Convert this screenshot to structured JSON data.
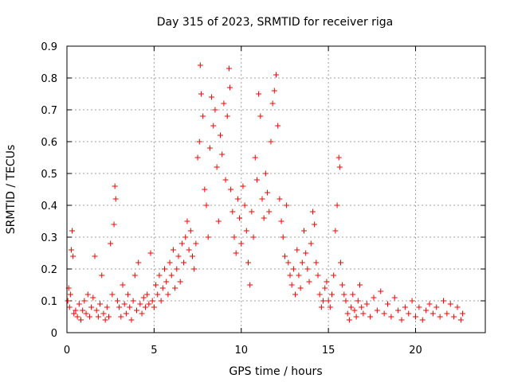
{
  "chart_data": {
    "type": "scatter",
    "title": "Day 315 of 2023, SRMTID for receiver riga",
    "xlabel": "GPS time / hours",
    "ylabel": "SRMTID / TECUs",
    "xlim": [
      0,
      24
    ],
    "ylim": [
      0,
      0.9
    ],
    "x_ticks": [
      0,
      5,
      10,
      15,
      20
    ],
    "x_tick_labels": [
      "0",
      "5",
      "10",
      "15",
      "20"
    ],
    "y_ticks": [
      0,
      0.1,
      0.2,
      0.3,
      0.4,
      0.5,
      0.6,
      0.7,
      0.8,
      0.9
    ],
    "y_tick_labels": [
      "0",
      "0.1",
      "0.2",
      "0.3",
      "0.4",
      "0.5",
      "0.6",
      "0.7",
      "0.8",
      "0.9"
    ],
    "grid": true,
    "marker": "plus",
    "marker_color": "#ff0000",
    "series": [
      {
        "name": "SRMTID",
        "points": [
          [
            0.05,
            0.1
          ],
          [
            0.1,
            0.14
          ],
          [
            0.15,
            0.08
          ],
          [
            0.2,
            0.12
          ],
          [
            0.25,
            0.26
          ],
          [
            0.3,
            0.32
          ],
          [
            0.35,
            0.24
          ],
          [
            0.4,
            0.06
          ],
          [
            0.5,
            0.07
          ],
          [
            0.6,
            0.05
          ],
          [
            0.7,
            0.09
          ],
          [
            0.8,
            0.04
          ],
          [
            0.9,
            0.07
          ],
          [
            1.0,
            0.1
          ],
          [
            1.1,
            0.06
          ],
          [
            1.2,
            0.12
          ],
          [
            1.3,
            0.05
          ],
          [
            1.4,
            0.08
          ],
          [
            1.5,
            0.11
          ],
          [
            1.6,
            0.24
          ],
          [
            1.7,
            0.07
          ],
          [
            1.8,
            0.05
          ],
          [
            1.9,
            0.09
          ],
          [
            2.0,
            0.18
          ],
          [
            2.1,
            0.06
          ],
          [
            2.2,
            0.04
          ],
          [
            2.3,
            0.08
          ],
          [
            2.4,
            0.05
          ],
          [
            2.5,
            0.28
          ],
          [
            2.6,
            0.12
          ],
          [
            2.7,
            0.34
          ],
          [
            2.75,
            0.46
          ],
          [
            2.8,
            0.42
          ],
          [
            2.9,
            0.1
          ],
          [
            3.0,
            0.08
          ],
          [
            3.1,
            0.05
          ],
          [
            3.2,
            0.15
          ],
          [
            3.3,
            0.09
          ],
          [
            3.4,
            0.06
          ],
          [
            3.5,
            0.12
          ],
          [
            3.6,
            0.08
          ],
          [
            3.7,
            0.04
          ],
          [
            3.8,
            0.1
          ],
          [
            3.9,
            0.18
          ],
          [
            4.0,
            0.07
          ],
          [
            4.1,
            0.22
          ],
          [
            4.2,
            0.09
          ],
          [
            4.3,
            0.06
          ],
          [
            4.4,
            0.11
          ],
          [
            4.5,
            0.08
          ],
          [
            4.6,
            0.12
          ],
          [
            4.7,
            0.09
          ],
          [
            4.8,
            0.25
          ],
          [
            4.9,
            0.1
          ],
          [
            5.0,
            0.08
          ],
          [
            5.1,
            0.15
          ],
          [
            5.2,
            0.12
          ],
          [
            5.3,
            0.18
          ],
          [
            5.4,
            0.1
          ],
          [
            5.5,
            0.14
          ],
          [
            5.6,
            0.2
          ],
          [
            5.7,
            0.16
          ],
          [
            5.8,
            0.12
          ],
          [
            5.9,
            0.22
          ],
          [
            6.0,
            0.18
          ],
          [
            6.1,
            0.26
          ],
          [
            6.2,
            0.14
          ],
          [
            6.3,
            0.2
          ],
          [
            6.4,
            0.24
          ],
          [
            6.5,
            0.16
          ],
          [
            6.6,
            0.28
          ],
          [
            6.7,
            0.22
          ],
          [
            6.8,
            0.3
          ],
          [
            6.9,
            0.35
          ],
          [
            7.0,
            0.26
          ],
          [
            7.1,
            0.32
          ],
          [
            7.2,
            0.24
          ],
          [
            7.3,
            0.2
          ],
          [
            7.4,
            0.28
          ],
          [
            7.5,
            0.55
          ],
          [
            7.6,
            0.6
          ],
          [
            7.65,
            0.84
          ],
          [
            7.7,
            0.75
          ],
          [
            7.8,
            0.68
          ],
          [
            7.9,
            0.45
          ],
          [
            8.0,
            0.4
          ],
          [
            8.1,
            0.3
          ],
          [
            8.2,
            0.58
          ],
          [
            8.3,
            0.74
          ],
          [
            8.4,
            0.65
          ],
          [
            8.5,
            0.7
          ],
          [
            8.6,
            0.52
          ],
          [
            8.7,
            0.35
          ],
          [
            8.8,
            0.62
          ],
          [
            8.9,
            0.56
          ],
          [
            9.0,
            0.72
          ],
          [
            9.1,
            0.48
          ],
          [
            9.2,
            0.68
          ],
          [
            9.3,
            0.83
          ],
          [
            9.35,
            0.77
          ],
          [
            9.4,
            0.45
          ],
          [
            9.5,
            0.38
          ],
          [
            9.6,
            0.3
          ],
          [
            9.7,
            0.25
          ],
          [
            9.8,
            0.42
          ],
          [
            9.9,
            0.36
          ],
          [
            10.0,
            0.28
          ],
          [
            10.1,
            0.46
          ],
          [
            10.2,
            0.4
          ],
          [
            10.3,
            0.32
          ],
          [
            10.4,
            0.22
          ],
          [
            10.5,
            0.15
          ],
          [
            10.6,
            0.38
          ],
          [
            10.7,
            0.3
          ],
          [
            10.8,
            0.55
          ],
          [
            10.9,
            0.48
          ],
          [
            11.0,
            0.75
          ],
          [
            11.1,
            0.68
          ],
          [
            11.2,
            0.42
          ],
          [
            11.3,
            0.36
          ],
          [
            11.4,
            0.5
          ],
          [
            11.5,
            0.44
          ],
          [
            11.6,
            0.38
          ],
          [
            11.7,
            0.6
          ],
          [
            11.8,
            0.72
          ],
          [
            11.9,
            0.76
          ],
          [
            12.0,
            0.81
          ],
          [
            12.1,
            0.65
          ],
          [
            12.2,
            0.42
          ],
          [
            12.3,
            0.35
          ],
          [
            12.4,
            0.3
          ],
          [
            12.5,
            0.24
          ],
          [
            12.6,
            0.4
          ],
          [
            12.7,
            0.22
          ],
          [
            12.8,
            0.18
          ],
          [
            12.9,
            0.15
          ],
          [
            13.0,
            0.2
          ],
          [
            13.1,
            0.12
          ],
          [
            13.2,
            0.26
          ],
          [
            13.3,
            0.18
          ],
          [
            13.4,
            0.14
          ],
          [
            13.5,
            0.22
          ],
          [
            13.6,
            0.32
          ],
          [
            13.7,
            0.25
          ],
          [
            13.8,
            0.2
          ],
          [
            13.9,
            0.16
          ],
          [
            14.0,
            0.28
          ],
          [
            14.1,
            0.38
          ],
          [
            14.2,
            0.34
          ],
          [
            14.3,
            0.22
          ],
          [
            14.4,
            0.18
          ],
          [
            14.5,
            0.12
          ],
          [
            14.6,
            0.08
          ],
          [
            14.7,
            0.1
          ],
          [
            14.8,
            0.14
          ],
          [
            14.9,
            0.16
          ],
          [
            15.0,
            0.1
          ],
          [
            15.1,
            0.08
          ],
          [
            15.2,
            0.12
          ],
          [
            15.3,
            0.18
          ],
          [
            15.4,
            0.32
          ],
          [
            15.5,
            0.4
          ],
          [
            15.6,
            0.55
          ],
          [
            15.65,
            0.52
          ],
          [
            15.7,
            0.22
          ],
          [
            15.8,
            0.15
          ],
          [
            15.9,
            0.12
          ],
          [
            16.0,
            0.1
          ],
          [
            16.1,
            0.06
          ],
          [
            16.2,
            0.04
          ],
          [
            16.3,
            0.08
          ],
          [
            16.4,
            0.12
          ],
          [
            16.5,
            0.07
          ],
          [
            16.6,
            0.05
          ],
          [
            16.7,
            0.1
          ],
          [
            16.8,
            0.15
          ],
          [
            16.9,
            0.08
          ],
          [
            17.0,
            0.06
          ],
          [
            17.2,
            0.09
          ],
          [
            17.4,
            0.05
          ],
          [
            17.6,
            0.11
          ],
          [
            17.8,
            0.07
          ],
          [
            18.0,
            0.13
          ],
          [
            18.2,
            0.06
          ],
          [
            18.4,
            0.09
          ],
          [
            18.6,
            0.05
          ],
          [
            18.8,
            0.11
          ],
          [
            19.0,
            0.07
          ],
          [
            19.2,
            0.04
          ],
          [
            19.4,
            0.08
          ],
          [
            19.6,
            0.06
          ],
          [
            19.8,
            0.1
          ],
          [
            20.0,
            0.05
          ],
          [
            20.2,
            0.08
          ],
          [
            20.4,
            0.04
          ],
          [
            20.6,
            0.07
          ],
          [
            20.8,
            0.09
          ],
          [
            21.0,
            0.06
          ],
          [
            21.2,
            0.08
          ],
          [
            21.4,
            0.05
          ],
          [
            21.6,
            0.1
          ],
          [
            21.8,
            0.06
          ],
          [
            22.0,
            0.09
          ],
          [
            22.2,
            0.05
          ],
          [
            22.4,
            0.08
          ],
          [
            22.6,
            0.04
          ],
          [
            22.7,
            0.06
          ]
        ]
      }
    ]
  }
}
